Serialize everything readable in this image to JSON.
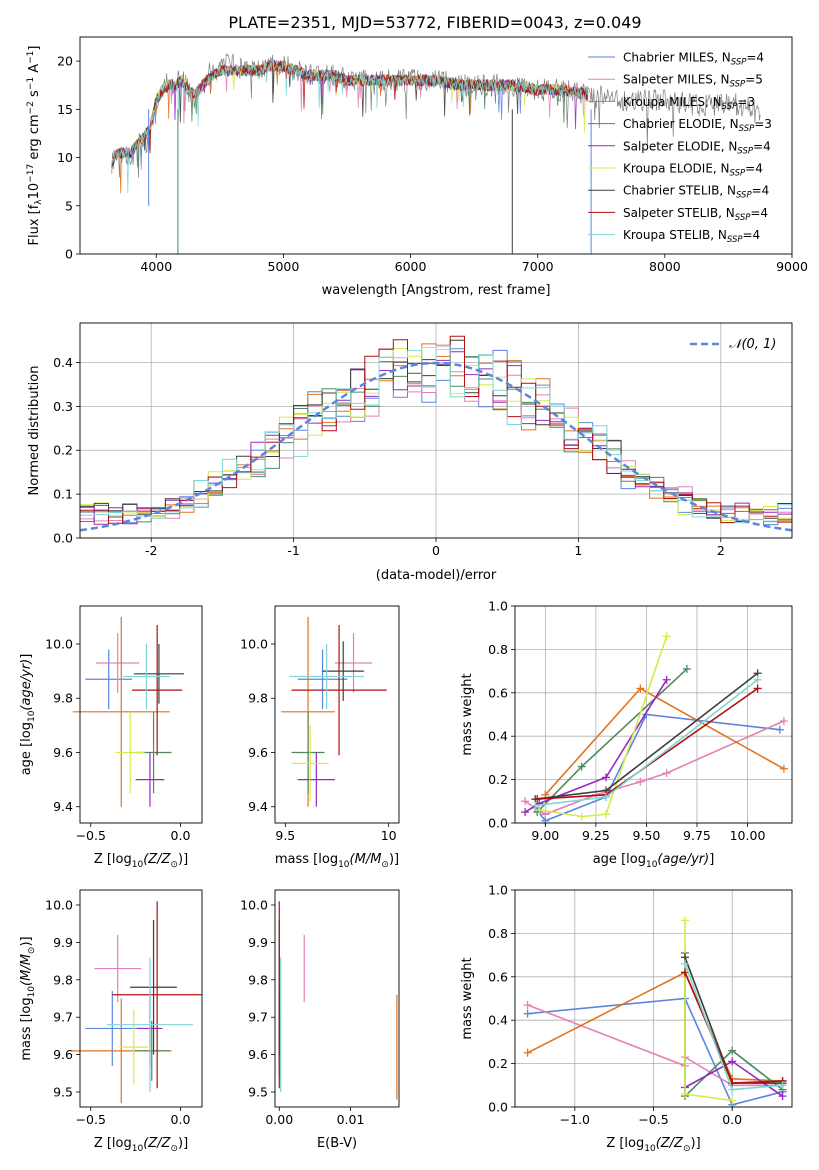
{
  "figure_title": "PLATE=2351, MJD=53772, FIBERID=0043, z=0.049",
  "models": [
    {
      "name": "Chabrier MILES",
      "nssp": "4",
      "color": "#5b86e0"
    },
    {
      "name": "Salpeter MILES",
      "nssp": "5",
      "color": "#e580b8"
    },
    {
      "name": "Kroupa MILES",
      "nssp": "3",
      "color": "#e0741f"
    },
    {
      "name": "Chabrier ELODIE",
      "nssp": "3",
      "color": "#4e8a5e"
    },
    {
      "name": "Salpeter ELODIE",
      "nssp": "4",
      "color": "#9a27c0"
    },
    {
      "name": "Kroupa ELODIE",
      "nssp": "4",
      "color": "#d6ea4a"
    },
    {
      "name": "Chabrier STELIB",
      "nssp": "4",
      "color": "#3d3d3d"
    },
    {
      "name": "Salpeter STELIB",
      "nssp": "4",
      "color": "#b01010"
    },
    {
      "name": "Kroupa STELIB",
      "nssp": "4",
      "color": "#7fd6d6"
    }
  ],
  "legend_nssp_prefix": "N",
  "legend_nssp_sub": "SSP",
  "legend_nssp_eq": "=",
  "chart_data": [
    {
      "id": "spectrum",
      "type": "line",
      "xlabel": "wavelength [Angstrom, rest frame]",
      "ylabel": "Flux [f",
      "ylabel_parts": [
        "Flux [f",
        "λ",
        "10",
        "−17",
        " erg cm",
        "−2",
        " s",
        "−1",
        " A",
        "−1",
        "]"
      ],
      "xlim": [
        3400,
        9000
      ],
      "ylim": [
        0,
        22.5
      ],
      "xticks": [
        4000,
        5000,
        6000,
        7000,
        8000,
        9000
      ],
      "yticks": [
        0,
        5,
        10,
        15,
        20
      ],
      "grid": false,
      "legend": "top-right",
      "data_color": "#808080",
      "data_x": [
        3650,
        3700,
        3750,
        3800,
        3850,
        3900,
        3950,
        4000,
        4050,
        4100,
        4150,
        4200,
        4250,
        4300,
        4400,
        4500,
        4600,
        4700,
        4800,
        4900,
        5000,
        5100,
        5200,
        5300,
        5400,
        5500,
        5600,
        5800,
        6000,
        6200,
        6400,
        6600,
        6800,
        7000,
        7200,
        7400,
        7600,
        7800,
        8000,
        8200,
        8400,
        8600,
        8750
      ],
      "data_y": [
        9.5,
        11,
        10,
        10.5,
        11.5,
        11,
        12.5,
        16,
        17.5,
        18,
        17.5,
        18.5,
        17,
        16,
        18.5,
        19.5,
        19.5,
        19,
        19,
        19.5,
        19.5,
        19,
        18.5,
        18.5,
        18.5,
        18,
        18,
        18,
        18,
        18,
        17.5,
        17.5,
        17.5,
        17,
        17,
        16.5,
        16,
        16,
        16,
        15.5,
        15.5,
        15.5,
        14.5
      ],
      "model_x": [
        3650,
        3700,
        3750,
        3800,
        3850,
        3900,
        3950,
        4000,
        4050,
        4100,
        4150,
        4200,
        4250,
        4300,
        4400,
        4500,
        4600,
        4700,
        4800,
        4900,
        5000,
        5100,
        5200,
        5300,
        5400,
        5500,
        5600,
        5800,
        6000,
        6200,
        6400,
        6600,
        6800,
        7000,
        7200,
        7400
      ],
      "model_y": [
        9.5,
        10.5,
        10.5,
        10.5,
        11.5,
        12,
        13,
        16,
        17,
        17.5,
        17.5,
        18,
        17,
        16.5,
        18,
        19,
        19,
        19,
        19,
        19.5,
        19.5,
        19,
        18.5,
        18.5,
        18.5,
        18,
        18,
        18,
        18,
        18,
        17.5,
        17.5,
        17.5,
        17,
        17,
        16.5
      ]
    },
    {
      "id": "residual-hist",
      "type": "step-histogram",
      "xlabel": "(data-model)/error",
      "ylabel": "Normed distribution",
      "xlim": [
        -2.5,
        2.5
      ],
      "ylim": [
        0,
        0.49
      ],
      "xticks": [
        -2,
        -1,
        0,
        1,
        2
      ],
      "yticks": [
        0.0,
        0.1,
        0.2,
        0.3,
        0.4
      ],
      "grid": true,
      "legend": "top-right",
      "reference_curve": {
        "name": "𝒩(0, 1)",
        "color": "#5b86e0",
        "style": "dashed",
        "mean": 0,
        "sigma": 1
      },
      "bin_width": 0.1,
      "bin_start": -2.5
    },
    {
      "id": "age-vs-Z",
      "type": "errorbar",
      "xlabel": "Z [log",
      "xlabel_tail": "(Z/Z",
      "ylabel": "age  [log",
      "ylabel_tail": "(age/yr)]",
      "xlim": [
        -0.56,
        0.12
      ],
      "ylim": [
        9.34,
        10.14
      ],
      "xticks": [
        -0.5,
        0.0
      ],
      "xtick_labels": [
        "−0.5",
        "0.0"
      ],
      "yticks": [
        9.4,
        9.6,
        9.8,
        10.0
      ],
      "grid": false,
      "points": [
        {
          "model": 0,
          "x": -0.4,
          "xerr": 0.13,
          "y": 9.87,
          "yerr": 0.11
        },
        {
          "model": 1,
          "x": -0.35,
          "xerr": 0.12,
          "y": 9.93,
          "yerr": 0.11
        },
        {
          "model": 2,
          "x": -0.33,
          "xerr": 0.27,
          "y": 9.75,
          "yerr": 0.35
        },
        {
          "model": 3,
          "x": -0.15,
          "xerr": 0.1,
          "y": 9.6,
          "yerr": 0.15
        },
        {
          "model": 4,
          "x": -0.17,
          "xerr": 0.08,
          "y": 9.5,
          "yerr": 0.1
        },
        {
          "model": 5,
          "x": -0.28,
          "xerr": 0.08,
          "y": 9.6,
          "yerr": 0.15
        },
        {
          "model": 6,
          "x": -0.12,
          "xerr": 0.14,
          "y": 9.89,
          "yerr": 0.11
        },
        {
          "model": 7,
          "x": -0.13,
          "xerr": 0.14,
          "y": 9.83,
          "yerr": 0.24
        },
        {
          "model": 8,
          "x": -0.19,
          "xerr": 0.13,
          "y": 9.88,
          "yerr": 0.12
        }
      ]
    },
    {
      "id": "age-vs-mass",
      "type": "errorbar",
      "xlabel": "mass [log",
      "xlabel_tail": "(M/M",
      "xlim": [
        9.45,
        10.05
      ],
      "ylim": [
        9.34,
        10.14
      ],
      "xticks": [
        9.5,
        10.0
      ],
      "yticks": [
        9.4,
        9.6,
        9.8,
        10.0
      ],
      "grid": false,
      "points": [
        {
          "model": 0,
          "x": 9.68,
          "xerr": 0.12,
          "y": 9.87,
          "yerr": 0.11
        },
        {
          "model": 1,
          "x": 9.83,
          "xerr": 0.09,
          "y": 9.93,
          "yerr": 0.11
        },
        {
          "model": 2,
          "x": 9.61,
          "xerr": 0.13,
          "y": 9.75,
          "yerr": 0.35
        },
        {
          "model": 3,
          "x": 9.61,
          "xerr": 0.08,
          "y": 9.6,
          "yerr": 0.15
        },
        {
          "model": 4,
          "x": 9.65,
          "xerr": 0.09,
          "y": 9.5,
          "yerr": 0.1
        },
        {
          "model": 5,
          "x": 9.62,
          "xerr": 0.09,
          "y": 9.56,
          "yerr": 0.14
        },
        {
          "model": 6,
          "x": 9.78,
          "xerr": 0.1,
          "y": 9.9,
          "yerr": 0.11
        },
        {
          "model": 7,
          "x": 9.76,
          "xerr": 0.23,
          "y": 9.83,
          "yerr": 0.24
        },
        {
          "model": 8,
          "x": 9.7,
          "xerr": 0.18,
          "y": 9.88,
          "yerr": 0.12
        }
      ]
    },
    {
      "id": "weight-vs-age",
      "type": "line",
      "xlabel": "age  [log",
      "xlabel_tail": "(age/yr)]",
      "ylabel": "mass weight",
      "xlim": [
        8.85,
        10.22
      ],
      "ylim": [
        0,
        1.0
      ],
      "xticks": [
        9.0,
        9.25,
        9.5,
        9.75,
        10.0
      ],
      "xtick_labels": [
        "9.00",
        "9.25",
        "9.50",
        "9.75",
        "10.00"
      ],
      "yticks": [
        0.0,
        0.2,
        0.4,
        0.6,
        0.8,
        1.0
      ],
      "grid": true,
      "series": [
        {
          "model": 0,
          "x": [
            8.95,
            9.0,
            9.3,
            9.5,
            10.16
          ],
          "y": [
            0.07,
            0.01,
            0.12,
            0.5,
            0.43
          ]
        },
        {
          "model": 1,
          "x": [
            8.9,
            9.0,
            9.25,
            9.47,
            9.6,
            10.18
          ],
          "y": [
            0.1,
            0.04,
            0.13,
            0.19,
            0.23,
            0.47
          ]
        },
        {
          "model": 2,
          "x": [
            9.0,
            9.47,
            10.18
          ],
          "y": [
            0.13,
            0.62,
            0.25
          ]
        },
        {
          "model": 3,
          "x": [
            8.96,
            9.18,
            9.7
          ],
          "y": [
            0.05,
            0.26,
            0.71
          ]
        },
        {
          "model": 4,
          "x": [
            8.9,
            8.97,
            9.3,
            9.6
          ],
          "y": [
            0.05,
            0.09,
            0.21,
            0.66
          ]
        },
        {
          "model": 5,
          "x": [
            8.97,
            9.18,
            9.3,
            9.6
          ],
          "y": [
            0.06,
            0.03,
            0.04,
            0.86
          ]
        },
        {
          "model": 6,
          "x": [
            8.95,
            9.3,
            10.05
          ],
          "y": [
            0.11,
            0.15,
            0.69
          ]
        },
        {
          "model": 7,
          "x": [
            8.96,
            9.3,
            10.05
          ],
          "y": [
            0.11,
            0.13,
            0.62
          ]
        },
        {
          "model": 8,
          "x": [
            8.95,
            9.3,
            10.05
          ],
          "y": [
            0.08,
            0.12,
            0.66
          ]
        }
      ]
    },
    {
      "id": "mass-vs-Z",
      "type": "errorbar",
      "xlabel": "Z [log",
      "xlabel_tail": "(Z/Z",
      "ylabel": "mass [log",
      "ylabel_tail": "(M/M",
      "xlim": [
        -0.56,
        0.12
      ],
      "ylim": [
        9.46,
        10.04
      ],
      "xticks": [
        -0.5,
        0.0
      ],
      "xtick_labels": [
        "−0.5",
        "0.0"
      ],
      "yticks": [
        9.5,
        9.6,
        9.7,
        9.8,
        9.9,
        10.0
      ],
      "grid": false,
      "points": [
        {
          "model": 0,
          "x": -0.38,
          "xerr": 0.15,
          "y": 9.67,
          "yerr": 0.1
        },
        {
          "model": 1,
          "x": -0.35,
          "xerr": 0.13,
          "y": 9.83,
          "yerr": 0.09
        },
        {
          "model": 2,
          "x": -0.33,
          "xerr": 0.28,
          "y": 9.61,
          "yerr": 0.14
        },
        {
          "model": 3,
          "x": -0.16,
          "xerr": 0.1,
          "y": 9.61,
          "yerr": 0.08
        },
        {
          "model": 4,
          "x": -0.17,
          "xerr": 0.07,
          "y": 9.67,
          "yerr": 0.1
        },
        {
          "model": 5,
          "x": -0.26,
          "xerr": 0.08,
          "y": 9.62,
          "yerr": 0.1
        },
        {
          "model": 6,
          "x": -0.15,
          "xerr": 0.13,
          "y": 9.78,
          "yerr": 0.18
        },
        {
          "model": 7,
          "x": -0.13,
          "xerr": 0.25,
          "y": 9.76,
          "yerr": 0.25
        },
        {
          "model": 8,
          "x": -0.17,
          "xerr": 0.24,
          "y": 9.68,
          "yerr": 0.18
        }
      ]
    },
    {
      "id": "mass-vs-ebv",
      "type": "errorbar",
      "xlabel": "E(B-V)",
      "xlim": [
        -0.0006,
        0.0168
      ],
      "ylim": [
        9.46,
        10.04
      ],
      "xticks": [
        0.0,
        0.01
      ],
      "xtick_labels": [
        "0.00",
        "0.01"
      ],
      "yticks": [
        9.5,
        9.6,
        9.7,
        9.8,
        9.9,
        10.0
      ],
      "grid": false,
      "points": [
        {
          "model": 0,
          "x": 0.0,
          "xerr": 0,
          "y": 9.67,
          "yerr": 0.1
        },
        {
          "model": 1,
          "x": 0.0035,
          "xerr": 0,
          "y": 9.83,
          "yerr": 0.09
        },
        {
          "model": 2,
          "x": 0.0165,
          "xerr": 0,
          "y": 9.62,
          "yerr": 0.14
        },
        {
          "model": 3,
          "x": 0.0,
          "xerr": 0,
          "y": 9.62,
          "yerr": 0.08
        },
        {
          "model": 4,
          "x": 0.0,
          "xerr": 0,
          "y": 9.67,
          "yerr": 0.1
        },
        {
          "model": 5,
          "x": 0.0001,
          "xerr": 0,
          "y": 9.62,
          "yerr": 0.1
        },
        {
          "model": 6,
          "x": 0.0,
          "xerr": 0,
          "y": 9.78,
          "yerr": 0.18
        },
        {
          "model": 7,
          "x": 0.0,
          "xerr": 0,
          "y": 9.76,
          "yerr": 0.25
        },
        {
          "model": 8,
          "x": 0.0002,
          "xerr": 0,
          "y": 9.68,
          "yerr": 0.18
        }
      ]
    },
    {
      "id": "weight-vs-Z",
      "type": "line",
      "xlabel": "Z [log",
      "xlabel_tail": "(Z/Z",
      "ylabel": "mass weight",
      "xlim": [
        -1.38,
        0.38
      ],
      "ylim": [
        0,
        1.0
      ],
      "xticks": [
        -1.0,
        -0.5,
        0.0
      ],
      "xtick_labels": [
        "−1.0",
        "−0.5",
        "0.0"
      ],
      "yticks": [
        0.0,
        0.2,
        0.4,
        0.6,
        0.8,
        1.0
      ],
      "grid": true,
      "series": [
        {
          "model": 0,
          "x": [
            -1.3,
            -0.3,
            0.0,
            0.32
          ],
          "y": [
            0.43,
            0.5,
            0.01,
            0.07
          ]
        },
        {
          "model": 1,
          "x": [
            -1.3,
            -0.3,
            -0.3,
            0.0,
            0.32
          ],
          "y": [
            0.47,
            0.19,
            0.23,
            0.1,
            0.1
          ]
        },
        {
          "model": 2,
          "x": [
            -1.3,
            -0.3,
            0.0,
            0.32
          ],
          "y": [
            0.25,
            0.62,
            0.13,
            0.12
          ]
        },
        {
          "model": 3,
          "x": [
            -0.3,
            -0.3,
            0.0,
            0.32
          ],
          "y": [
            0.71,
            0.05,
            0.26,
            0.08
          ]
        },
        {
          "model": 4,
          "x": [
            -0.3,
            0.0,
            0.32
          ],
          "y": [
            0.09,
            0.21,
            0.05
          ]
        },
        {
          "model": 5,
          "x": [
            -0.3,
            -0.3,
            0.0
          ],
          "y": [
            0.86,
            0.06,
            0.03
          ]
        },
        {
          "model": 6,
          "x": [
            -0.3,
            0.0,
            0.32
          ],
          "y": [
            0.69,
            0.11,
            0.11
          ]
        },
        {
          "model": 7,
          "x": [
            -0.3,
            0.0,
            0.32
          ],
          "y": [
            0.62,
            0.11,
            0.12
          ]
        },
        {
          "model": 8,
          "x": [
            -0.3,
            0.0,
            0.32
          ],
          "y": [
            0.66,
            0.08,
            0.1
          ]
        }
      ]
    }
  ]
}
